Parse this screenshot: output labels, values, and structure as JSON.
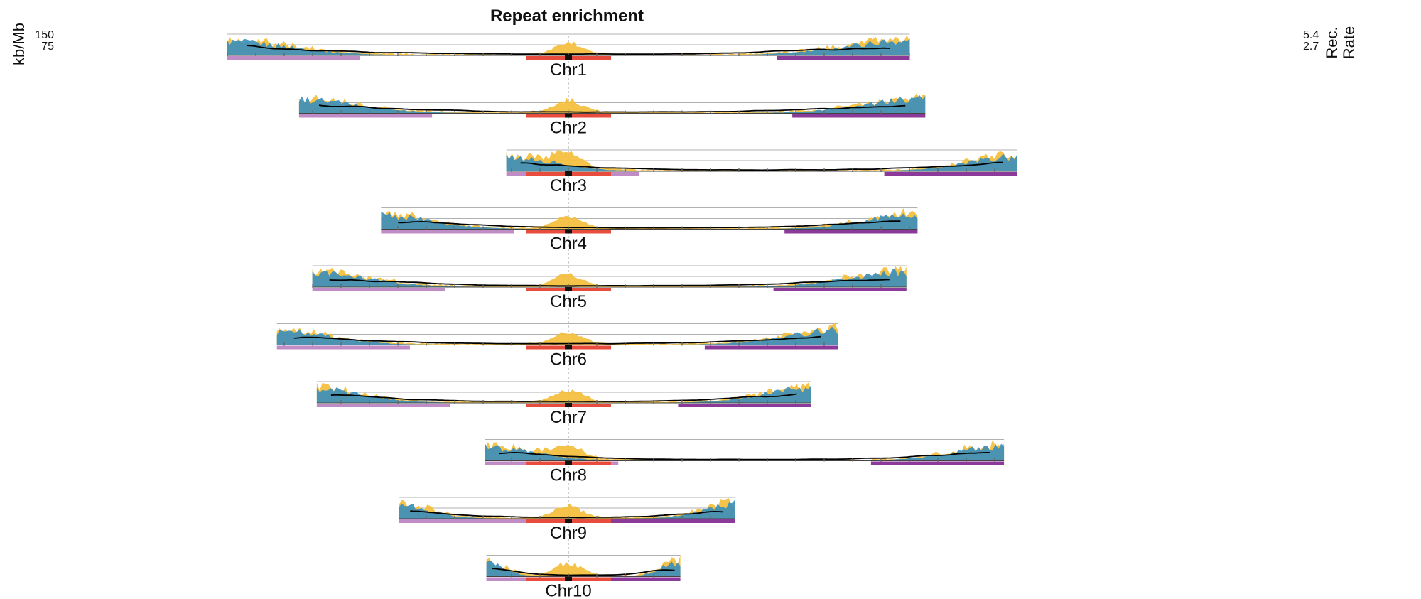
{
  "chart_data": {
    "type": "area",
    "title": "Repeat enrichment",
    "left_axis": {
      "label": "kb/Mb",
      "ticks": [
        "150",
        "75"
      ]
    },
    "right_axis": {
      "label_lines": [
        "Rec.",
        "Rate"
      ],
      "ticks": [
        "5.4",
        "2.7"
      ]
    },
    "grid": true,
    "legend": "none",
    "colors": {
      "repeat_a": "#f5be3b",
      "repeat_b": "#3d8fba",
      "recombination": "#000000",
      "centromere_region": "#e84c3d",
      "arm_left": "#c08cc6",
      "arm_right": "#8b3a99",
      "centromere_marker": "#111111",
      "guide_line": "#b0b0b0"
    },
    "chromosomes": [
      {
        "name": "Chr1",
        "start": -308,
        "end": 308
      },
      {
        "name": "Chr2",
        "start": -243,
        "end": 322
      },
      {
        "name": "Chr3",
        "start": -56,
        "end": 405
      },
      {
        "name": "Chr4",
        "start": -169,
        "end": 315
      },
      {
        "name": "Chr5",
        "start": -231,
        "end": 305
      },
      {
        "name": "Chr6",
        "start": -263,
        "end": 243
      },
      {
        "name": "Chr7",
        "start": -227,
        "end": 219
      },
      {
        "name": "Chr8",
        "start": -75,
        "end": 393
      },
      {
        "name": "Chr9",
        "start": -153,
        "end": 150
      },
      {
        "name": "Chr10",
        "start": -74,
        "end": 101
      }
    ]
  }
}
